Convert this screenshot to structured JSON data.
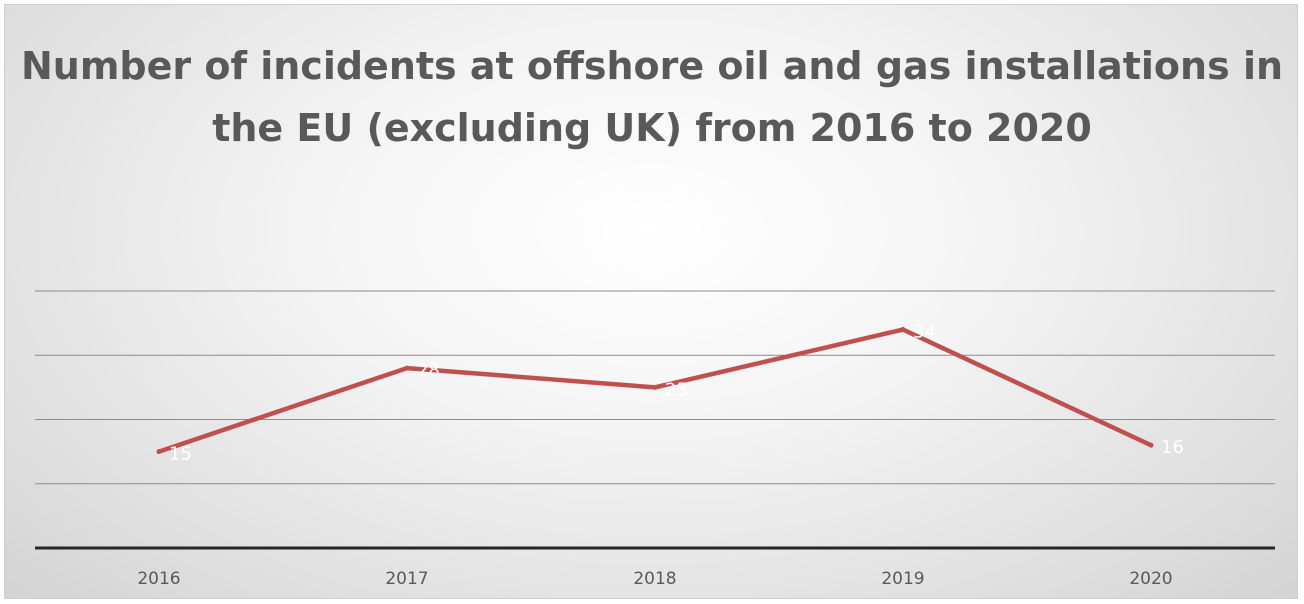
{
  "chart_data": {
    "type": "line",
    "title": "Number of incidents at offshore oil and gas installations in the EU (excluding UK) from 2016 to 2020",
    "xlabel": "",
    "ylabel": "",
    "categories": [
      "2016",
      "2017",
      "2018",
      "2019",
      "2020"
    ],
    "series": [
      {
        "values": [
          15,
          28,
          25,
          34,
          16
        ],
        "color": "#c0504d"
      }
    ],
    "ylim": [
      0,
      40
    ],
    "y_gridlines": [
      10,
      20,
      30,
      40
    ],
    "grid": true,
    "legend": "none",
    "data_labels": true,
    "axis_color": "#262626",
    "gridline_color": "#8c8c8c",
    "tick_label_color": "#595959",
    "data_label_color": "#ffffff"
  }
}
